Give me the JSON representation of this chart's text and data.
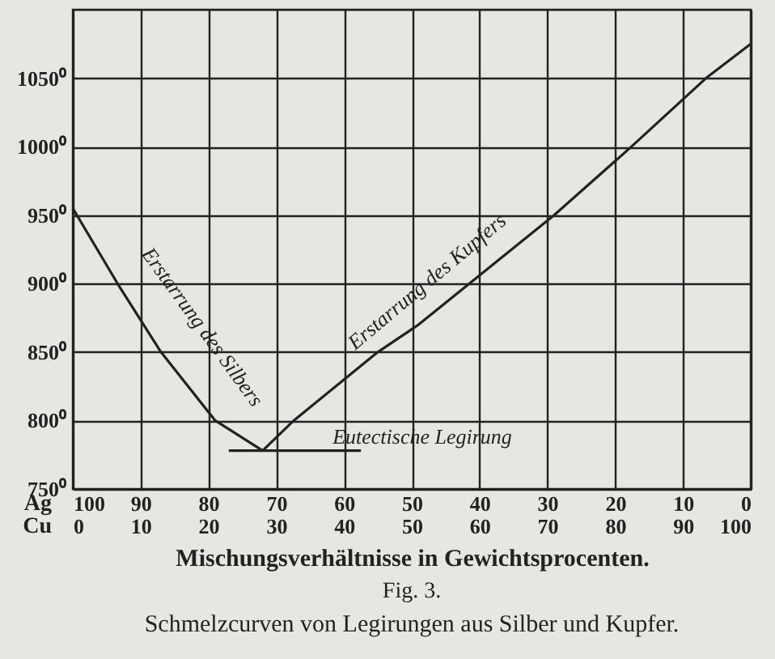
{
  "chart_data": {
    "type": "line",
    "title": "Fig. 3.",
    "subtitle": "Schmelzcurven von Legirungen aus Silber und Kupfer.",
    "xlabel": "Mischungsverhältnisse in Gewichtsprocenten.",
    "xlim": [
      0,
      100
    ],
    "xticks": [
      0,
      10,
      20,
      30,
      40,
      50,
      60,
      70,
      80,
      90,
      100
    ],
    "x2lim": [
      100,
      0
    ],
    "x2ticks": [
      100,
      90,
      80,
      70,
      60,
      50,
      40,
      30,
      20,
      10,
      0
    ],
    "ylim": [
      750,
      1100
    ],
    "yticks": [
      {
        "value": 750,
        "label": "750⁰"
      },
      {
        "value": 800,
        "label": "800⁰"
      },
      {
        "value": 850,
        "label": "850⁰"
      },
      {
        "value": 900,
        "label": "900⁰"
      },
      {
        "value": 950,
        "label": "950⁰"
      },
      {
        "value": 1000,
        "label": "1000⁰"
      },
      {
        "value": 1050,
        "label": "1050⁰"
      }
    ],
    "grid": true,
    "marker": "none",
    "line_style": "solid",
    "series": [
      {
        "color": "#222222",
        "x": [
          0,
          6.6,
          13,
          21,
          28
        ],
        "values": [
          955,
          900,
          850,
          800,
          778
        ]
      },
      {
        "color": "#222222",
        "x": [
          28,
          32.6,
          45,
          51,
          58.5,
          71,
          82.4,
          93.4,
          100
        ],
        "values": [
          778,
          800,
          850,
          870,
          900,
          950,
          1000,
          1050,
          1075
        ]
      },
      {
        "color": "#222222",
        "x": [
          23,
          42.5
        ],
        "values": [
          778,
          778
        ]
      }
    ],
    "annotations": [
      "Erstarrung des Silbers",
      "Erstarrung des Kupfers",
      "Eutectische Legirung",
      "Ag",
      "Cu"
    ]
  }
}
